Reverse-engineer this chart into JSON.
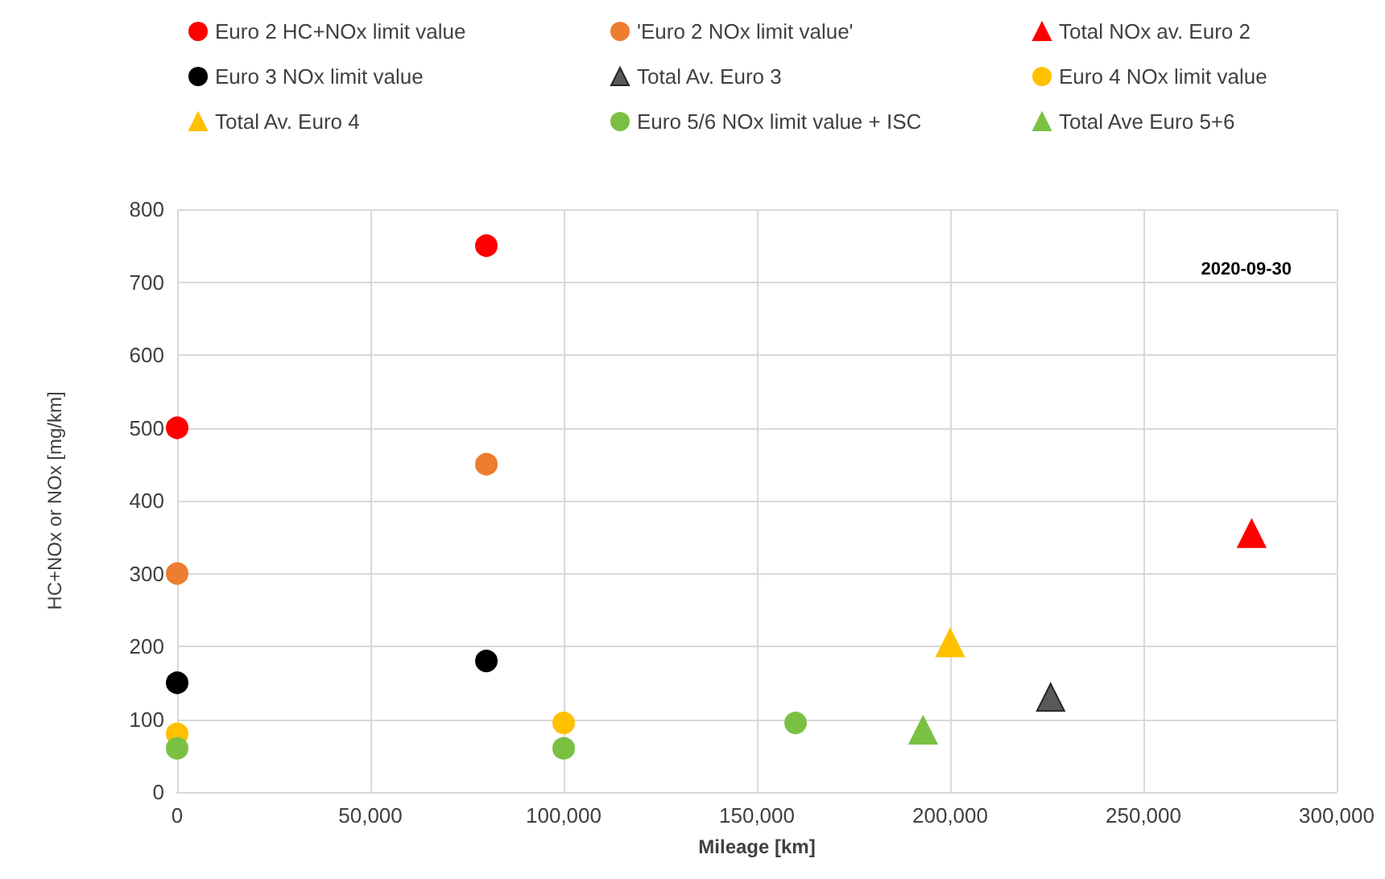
{
  "chart_data": {
    "type": "scatter",
    "xlabel": "Mileage [km]",
    "ylabel": "HC+NOx or NOx [mg/km]",
    "annotations": [
      "2020-09-30"
    ],
    "xlim": [
      0,
      300000
    ],
    "xticks": [
      {
        "value": 0,
        "label": "0"
      },
      {
        "value": 50000,
        "label": "50,000"
      },
      {
        "value": 100000,
        "label": "100,000"
      },
      {
        "value": 150000,
        "label": "150,000"
      },
      {
        "value": 200000,
        "label": "200,000"
      },
      {
        "value": 250000,
        "label": "250,000"
      },
      {
        "value": 300000,
        "label": "300,000"
      }
    ],
    "ylim": [
      0,
      800
    ],
    "yticks": [
      0,
      100,
      200,
      300,
      400,
      500,
      600,
      700,
      800
    ],
    "grid": true,
    "legend": "top",
    "series": [
      {
        "name": "Euro 2 HC+NOx limit value",
        "color": "#ff0000",
        "marker": "circle",
        "x": [
          0,
          80000
        ],
        "values": [
          500,
          750
        ]
      },
      {
        "name": "'Euro 2 NOx limit value'",
        "color": "#ed7d31",
        "marker": "circle",
        "x": [
          0,
          80000
        ],
        "values": [
          300,
          450
        ]
      },
      {
        "name": "Total NOx av. Euro 2",
        "color": "#ff0000",
        "marker": "triangle",
        "x": [
          278000
        ],
        "values": [
          355
        ]
      },
      {
        "name": "Euro 3 NOx limit value",
        "color": "#000000",
        "marker": "circle",
        "x": [
          0,
          80000
        ],
        "values": [
          150,
          180
        ]
      },
      {
        "name": "Total Av. Euro 3",
        "color": "#595959",
        "marker": "triangle",
        "x": [
          226000
        ],
        "values": [
          130
        ]
      },
      {
        "name": "Euro 4 NOx limit value",
        "color": "#ffc000",
        "marker": "circle",
        "x": [
          0,
          100000
        ],
        "values": [
          80,
          95
        ]
      },
      {
        "name": "Total Av. Euro 4",
        "color": "#ffc000",
        "marker": "triangle",
        "x": [
          200000
        ],
        "values": [
          205
        ]
      },
      {
        "name": "Euro 5/6 NOx limit value + ISC",
        "color": "#7ac143",
        "marker": "circle",
        "x": [
          0,
          100000,
          160000
        ],
        "values": [
          60,
          60,
          95
        ]
      },
      {
        "name": "Total Ave Euro 5+6",
        "color": "#7ac143",
        "marker": "triangle",
        "x": [
          193000
        ],
        "values": [
          85
        ]
      }
    ]
  }
}
